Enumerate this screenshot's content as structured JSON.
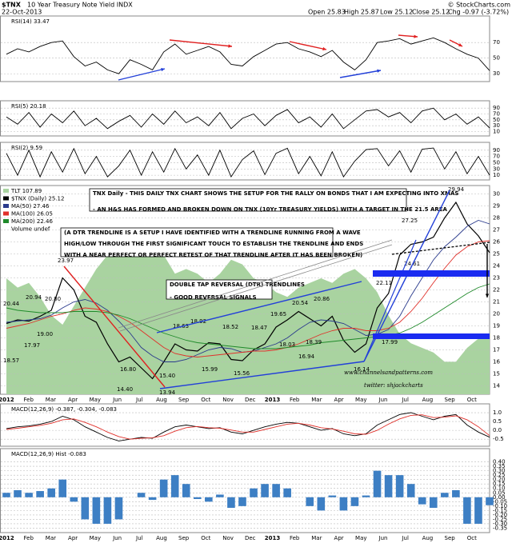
{
  "header": {
    "symbol": "$TNX",
    "title": "10 Year Treasury Note Yield INDX",
    "credit": "© StockCharts.com",
    "date": "22-Oct-2013",
    "quote": [
      "Open 25.83",
      "High 25.87",
      "Low 25.12",
      "Close 25.12",
      "Chg -0.97 (-3.72%)"
    ]
  },
  "time_axis": [
    "2012",
    "Feb",
    "Mar",
    "Apr",
    "May",
    "Jun",
    "Jul",
    "Aug",
    "Sep",
    "Oct",
    "Nov",
    "Dec",
    "2013",
    "Feb",
    "Mar",
    "Apr",
    "May",
    "Jun",
    "Jul",
    "Aug",
    "Sep",
    "Oct"
  ],
  "chart_data": [
    {
      "type": "line",
      "title": "RSI(14) 33.47",
      "ylim": [
        20,
        104
      ],
      "yticks": [
        70,
        50,
        30
      ],
      "grid": true,
      "series": [
        {
          "color": "#000000",
          "values": [
            55,
            62,
            58,
            65,
            70,
            72,
            52,
            40,
            45,
            35,
            30,
            48,
            42,
            35,
            58,
            68,
            55,
            60,
            65,
            58,
            42,
            40,
            52,
            60,
            68,
            70,
            62,
            58,
            52,
            60,
            45,
            35,
            48,
            70,
            72,
            75,
            68,
            72,
            76,
            70,
            62,
            55,
            50,
            34
          ]
        }
      ]
    },
    {
      "type": "line",
      "title": "RSI(5) 20.18",
      "ylim": [
        -5,
        115
      ],
      "yticks": [
        90,
        70,
        50,
        30,
        10
      ],
      "grid": true,
      "series": [
        {
          "color": "#000000",
          "values": [
            60,
            35,
            75,
            25,
            70,
            40,
            80,
            30,
            55,
            20,
            45,
            65,
            25,
            70,
            35,
            80,
            40,
            60,
            30,
            75,
            20,
            55,
            70,
            30,
            65,
            85,
            40,
            60,
            25,
            70,
            20,
            50,
            80,
            85,
            60,
            75,
            40,
            80,
            90,
            50,
            70,
            35,
            60,
            22
          ]
        }
      ]
    },
    {
      "type": "line",
      "title": "RSI(2) 9.59",
      "ylim": [
        -5,
        115
      ],
      "yticks": [
        90,
        70,
        50,
        30,
        10
      ],
      "grid": true,
      "series": [
        {
          "color": "#000000",
          "values": [
            80,
            10,
            90,
            5,
            85,
            20,
            95,
            15,
            70,
            5,
            40,
            90,
            10,
            85,
            20,
            95,
            30,
            75,
            10,
            90,
            5,
            60,
            88,
            12,
            80,
            96,
            15,
            70,
            8,
            85,
            5,
            55,
            92,
            95,
            40,
            88,
            20,
            93,
            97,
            30,
            85,
            15,
            70,
            10
          ]
        }
      ]
    },
    {
      "type": "line",
      "ylim": [
        13.3,
        30.7
      ],
      "yticks": [
        14,
        15,
        16,
        17,
        18,
        19,
        20,
        21,
        22,
        23,
        24,
        25,
        26,
        27,
        28,
        29,
        30
      ],
      "grid": true,
      "y2lim": [
        95,
        140
      ],
      "legend_extra": "Volume undef",
      "series": [
        {
          "name": "TLT 107.89",
          "color": "#a9d3a0",
          "axis": "y2",
          "values": [
            120,
            118,
            119,
            116,
            112,
            110,
            114,
            118,
            122,
            125,
            128,
            127,
            130,
            129,
            125,
            121,
            122,
            121,
            119,
            121,
            124,
            123,
            120,
            119,
            117,
            116,
            118,
            119,
            120,
            119,
            121,
            122,
            120,
            117,
            112,
            108,
            106,
            105,
            104,
            102,
            102,
            105,
            107,
            108
          ]
        },
        {
          "name": "$TNX (Daily) 25.12",
          "color": "#000000",
          "values": [
            19.2,
            19.5,
            19.4,
            19.8,
            20.3,
            23.0,
            22.0,
            19.8,
            19.3,
            17.5,
            16.0,
            16.4,
            15.5,
            14.6,
            16.0,
            17.5,
            17.0,
            16.9,
            17.6,
            17.5,
            16.2,
            16.1,
            17.0,
            17.5,
            18.9,
            19.5,
            20.2,
            19.6,
            19.0,
            19.8,
            17.8,
            16.8,
            17.5,
            20.5,
            21.7,
            24.9,
            25.8,
            26.0,
            26.4,
            28.0,
            29.3,
            27.5,
            26.5,
            25.1
          ]
        },
        {
          "name": "MA(50) 27.46",
          "color": "#2a3a8c",
          "values": [
            19.3,
            19.4,
            19.5,
            19.6,
            19.9,
            20.5,
            21.0,
            21.2,
            20.9,
            20.3,
            19.4,
            18.4,
            17.2,
            16.5,
            16.0,
            16.0,
            16.2,
            16.6,
            17.0,
            17.2,
            17.1,
            16.8,
            16.9,
            17.2,
            17.5,
            18.0,
            18.7,
            19.3,
            19.5,
            19.4,
            19.2,
            18.7,
            18.2,
            18.3,
            18.7,
            19.8,
            21.5,
            23.0,
            24.5,
            25.6,
            26.4,
            27.3,
            27.8,
            27.5
          ]
        },
        {
          "name": "MA(100) 26.05",
          "color": "#e0302a",
          "values": [
            18.8,
            19.0,
            19.2,
            19.5,
            19.8,
            20.0,
            20.3,
            20.5,
            20.4,
            20.2,
            19.8,
            19.3,
            18.6,
            17.9,
            17.2,
            16.7,
            16.5,
            16.4,
            16.5,
            16.6,
            16.7,
            16.8,
            16.9,
            16.9,
            17.0,
            17.2,
            17.5,
            17.9,
            18.3,
            18.6,
            18.8,
            18.8,
            18.6,
            18.6,
            18.8,
            19.3,
            20.2,
            21.3,
            22.6,
            23.8,
            24.9,
            25.6,
            26.0,
            26.1
          ]
        },
        {
          "name": "MA(200) 22.46",
          "color": "#1f8a2a",
          "values": [
            20.5,
            20.3,
            20.2,
            20.1,
            20.1,
            20.1,
            20.2,
            20.2,
            20.2,
            20.1,
            19.9,
            19.6,
            19.2,
            18.8,
            18.4,
            18.1,
            17.8,
            17.6,
            17.5,
            17.4,
            17.3,
            17.2,
            17.1,
            17.1,
            17.1,
            17.2,
            17.3,
            17.4,
            17.6,
            17.7,
            17.8,
            17.9,
            18.0,
            18.1,
            18.2,
            18.4,
            18.8,
            19.3,
            19.9,
            20.5,
            21.1,
            21.7,
            22.2,
            22.5
          ]
        }
      ],
      "price_labels": [
        {
          "value": 20.44,
          "label": "20.44"
        },
        {
          "value": 20.94,
          "label": "20.94"
        },
        {
          "value": 17.97,
          "label": "17.97"
        },
        {
          "value": 18.57,
          "label": "18.57"
        },
        {
          "value": 19,
          "label": "19.00"
        },
        {
          "value": 20.8,
          "label": "20.80"
        },
        {
          "value": 23.97,
          "label": "23.97"
        },
        {
          "value": 16.8,
          "label": "16.80"
        },
        {
          "value": 14.4,
          "label": "14.40"
        },
        {
          "value": 13.94,
          "label": "13.94"
        },
        {
          "value": 18.63,
          "label": "18.63"
        },
        {
          "value": 18.92,
          "label": "18.92"
        },
        {
          "value": 15.4,
          "label": "15.40"
        },
        {
          "value": 18.52,
          "label": "18.52"
        },
        {
          "value": 15.99,
          "label": "15.99"
        },
        {
          "value": 15.56,
          "label": "15.56"
        },
        {
          "value": 18.47,
          "label": "18.47"
        },
        {
          "value": 19.65,
          "label": "19.65"
        },
        {
          "value": 18.03,
          "label": "18.03"
        },
        {
          "value": 16.94,
          "label": "16.94"
        },
        {
          "value": 20.54,
          "label": "20.54"
        },
        {
          "value": 20.86,
          "label": "20.86"
        },
        {
          "value": 18.39,
          "label": "18.39"
        },
        {
          "value": 16.14,
          "label": "16.14"
        },
        {
          "value": 22.11,
          "label": "22.11"
        },
        {
          "value": 17.99,
          "label": "17.99"
        },
        {
          "value": 24.61,
          "label": "24.61"
        },
        {
          "value": 27.25,
          "label": "27.25"
        },
        {
          "value": 29.94,
          "label": "29.94"
        }
      ],
      "annotations": [
        [
          "TNX Daily - THIS DAILY TNX CHART SHOWS THE SETUP FOR THE RALLY ON BONDS THAT I AM EXPECTING INTO XMAS",
          "- AN H&S HAS FORMED AND BROKEN DOWN ON TNX (10Yr TREASURY YIELDS) WITH A TARGET IN THE 21.5 AREA"
        ],
        [
          "(A DTR TRENDLINE IS A SETUP I HAVE IDENTIFIED WITH A TRENDLINE RUNNING FROM A WAVE",
          "HIGH/LOW THROUGH THE FIRST SIGNIFICANT TOUCH TO ESTABLISH THE TRENDLINE AND ENDS",
          "WITH A NEAR PERFECT OR PERFECT RETEST OF THAT TRENDLINE AFTER IT HAS BEEN BROKEN)"
        ],
        [
          "DOUBLE TAP REVERSAL (DTR) TRENDLINES",
          "- GOOD REVERSAL SIGNALS"
        ]
      ],
      "watermark": [
        "www.channelsandpatterns.com",
        "twitter: shjackcharts"
      ]
    },
    {
      "type": "line",
      "title": "MACD(12,26,9) -0.387, -0.304, -0.083",
      "ylim": [
        -0.9,
        1.5
      ],
      "yticks": [
        {
          "value": 1,
          "label": "1.0"
        },
        {
          "value": 0.5,
          "label": "0.5"
        },
        {
          "value": 0,
          "label": "0.0"
        },
        {
          "value": -0.5,
          "label": "-0.5"
        }
      ],
      "grid": true,
      "series": [
        {
          "color": "#000000",
          "values": [
            0.1,
            0.2,
            0.25,
            0.35,
            0.5,
            0.8,
            0.6,
            0.2,
            -0.1,
            -0.4,
            -0.6,
            -0.5,
            -0.4,
            -0.45,
            -0.1,
            0.2,
            0.3,
            0.2,
            0.1,
            0.15,
            -0.1,
            -0.2,
            0.0,
            0.2,
            0.35,
            0.45,
            0.4,
            0.2,
            0.0,
            0.1,
            -0.2,
            -0.3,
            -0.2,
            0.3,
            0.6,
            0.9,
            1.0,
            0.8,
            0.6,
            0.8,
            0.9,
            0.3,
            -0.1,
            -0.39
          ]
        },
        {
          "color": "#e0302a",
          "values": [
            0.05,
            0.12,
            0.2,
            0.28,
            0.4,
            0.6,
            0.65,
            0.45,
            0.2,
            -0.1,
            -0.35,
            -0.5,
            -0.45,
            -0.42,
            -0.3,
            -0.05,
            0.15,
            0.22,
            0.15,
            0.12,
            0.02,
            -0.1,
            -0.1,
            0.05,
            0.2,
            0.35,
            0.4,
            0.3,
            0.15,
            0.08,
            -0.05,
            -0.2,
            -0.22,
            0.0,
            0.35,
            0.65,
            0.85,
            0.88,
            0.72,
            0.75,
            0.82,
            0.6,
            0.2,
            -0.3
          ]
        }
      ]
    },
    {
      "type": "bar",
      "title": "MACD(12,26,9) Hist -0.083",
      "ylim": [
        -0.4,
        0.55
      ],
      "yticks": [
        {
          "value": 0.4,
          "label": "0.40"
        },
        {
          "value": 0.35,
          "label": "0.35"
        },
        {
          "value": 0.3,
          "label": "0.30"
        },
        {
          "value": 0.25,
          "label": "0.25"
        },
        {
          "value": 0.2,
          "label": "0.20"
        },
        {
          "value": 0.15,
          "label": "0.15"
        },
        {
          "value": 0.1,
          "label": "0.10"
        },
        {
          "value": 0.05,
          "label": "0.05"
        },
        {
          "value": 0,
          "label": "0.00"
        },
        {
          "value": -0.05,
          "label": "-0.05"
        },
        {
          "value": -0.1,
          "label": "-0.10"
        },
        {
          "value": -0.15,
          "label": "-0.15"
        },
        {
          "value": -0.2,
          "label": "-0.20"
        },
        {
          "value": -0.25,
          "label": "-0.25"
        },
        {
          "value": -0.3,
          "label": "-0.30"
        },
        {
          "value": -0.35,
          "label": "-0.35"
        }
      ],
      "grid": true,
      "series": [
        {
          "color": "#3d7fc4",
          "values": [
            0.05,
            0.08,
            0.05,
            0.07,
            0.1,
            0.2,
            -0.05,
            -0.25,
            -0.3,
            -0.3,
            -0.25,
            0,
            0.05,
            -0.03,
            0.2,
            0.25,
            0.15,
            -0.02,
            -0.05,
            0.03,
            -0.12,
            -0.1,
            0.1,
            0.15,
            0.15,
            0.1,
            0,
            -0.1,
            -0.15,
            0.02,
            -0.15,
            -0.1,
            0.02,
            0.3,
            0.25,
            0.25,
            0.15,
            -0.08,
            -0.12,
            0.05,
            0.08,
            -0.3,
            -0.3,
            -0.09
          ]
        }
      ]
    }
  ]
}
